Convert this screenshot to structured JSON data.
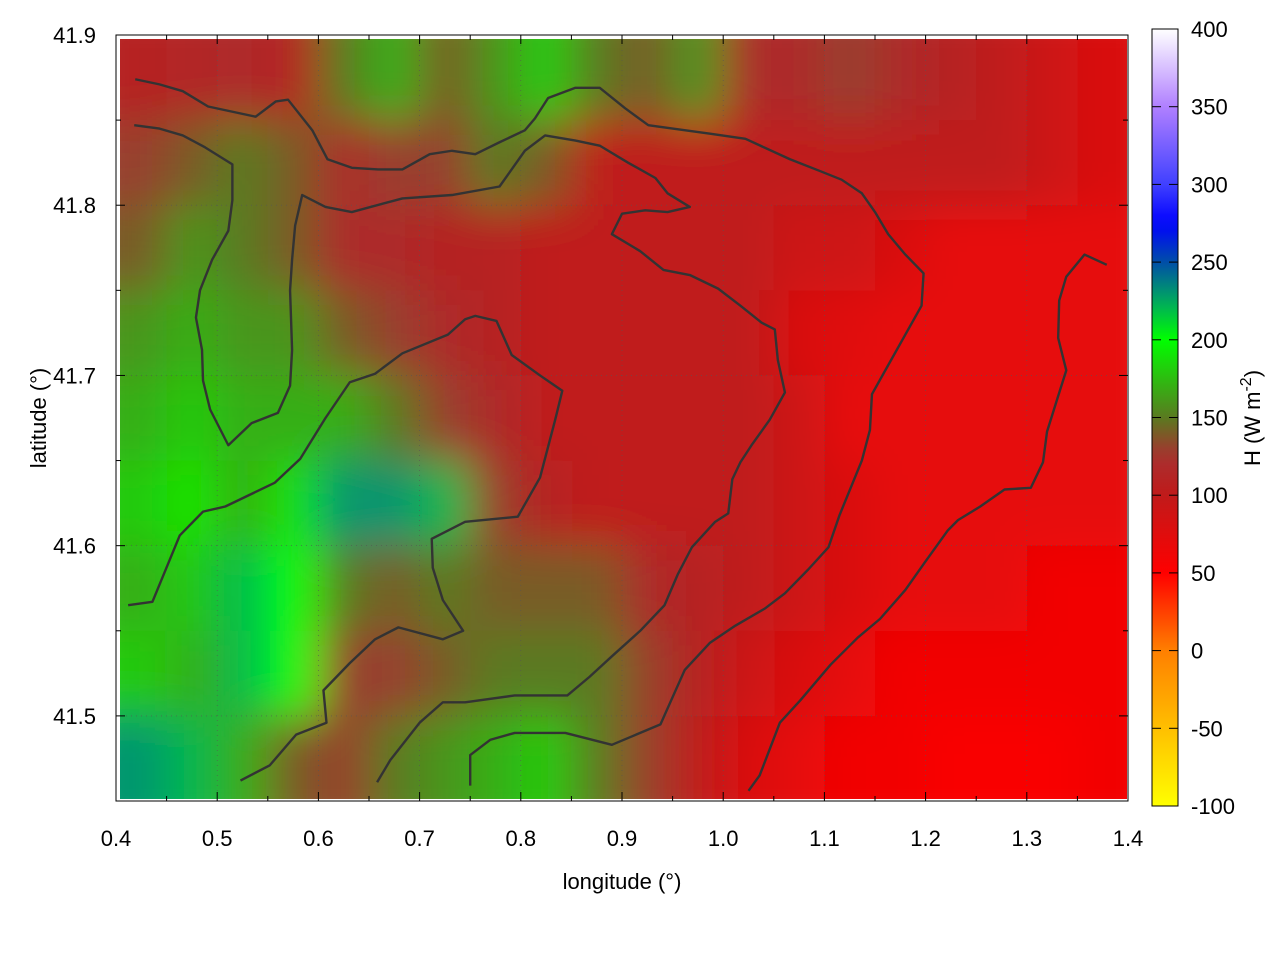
{
  "chart_data": {
    "type": "heatmap",
    "title": "",
    "xlabel": "longitude (°)",
    "ylabel": "latitude (°)",
    "colorbar_label": "H (W m",
    "colorbar_label_sup": "-2",
    "colorbar_label_close": ")",
    "xlim": [
      0.4,
      1.4
    ],
    "ylim": [
      41.45,
      41.9
    ],
    "clim": [
      -100,
      400
    ],
    "grid": true,
    "xticks": [
      "0.4",
      "0.5",
      "0.6",
      "0.7",
      "0.8",
      "0.9",
      "1.0",
      "1.1",
      "1.2",
      "1.3",
      "1.4"
    ],
    "yticks": [
      "41.5",
      "41.6",
      "41.7",
      "41.8",
      "41.9"
    ],
    "cticks": [
      "-100",
      "-50",
      "0",
      "50",
      "100",
      "150",
      "200",
      "250",
      "300",
      "350",
      "400"
    ],
    "colormap": [
      {
        "v": -100,
        "c": "#ffff00"
      },
      {
        "v": 0,
        "c": "#ff7f00"
      },
      {
        "v": 50,
        "c": "#ff0000"
      },
      {
        "v": 100,
        "c": "#c01a1a"
      },
      {
        "v": 125,
        "c": "#a83030"
      },
      {
        "v": 150,
        "c": "#5a7a20"
      },
      {
        "v": 200,
        "c": "#00ff00"
      },
      {
        "v": 225,
        "c": "#00a860"
      },
      {
        "v": 250,
        "c": "#004ea8"
      },
      {
        "v": 275,
        "c": "#0000ff"
      },
      {
        "v": 300,
        "c": "#4040ff"
      },
      {
        "v": 350,
        "c": "#b080ff"
      },
      {
        "v": 400,
        "c": "#ffffff"
      }
    ],
    "grid_x": [
      0.425,
      0.475,
      0.525,
      0.575,
      0.625,
      0.675,
      0.725,
      0.775,
      0.825,
      0.875,
      0.925,
      0.975,
      1.025,
      1.075,
      1.125,
      1.175,
      1.225,
      1.275,
      1.325,
      1.375
    ],
    "grid_y": [
      41.875,
      41.825,
      41.775,
      41.725,
      41.675,
      41.625,
      41.575,
      41.525,
      41.475
    ],
    "values": [
      [
        110,
        115,
        120,
        110,
        150,
        170,
        140,
        160,
        180,
        150,
        140,
        160,
        120,
        120,
        130,
        120,
        110,
        100,
        90,
        80
      ],
      [
        130,
        140,
        150,
        140,
        120,
        130,
        130,
        150,
        140,
        100,
        100,
        100,
        100,
        100,
        100,
        100,
        100,
        100,
        90,
        80
      ],
      [
        140,
        160,
        150,
        140,
        120,
        120,
        110,
        110,
        100,
        100,
        100,
        100,
        100,
        90,
        90,
        80,
        70,
        70,
        70,
        70
      ],
      [
        160,
        170,
        160,
        160,
        140,
        130,
        120,
        110,
        100,
        100,
        100,
        100,
        100,
        80,
        75,
        70,
        70,
        70,
        70,
        70
      ],
      [
        170,
        180,
        170,
        170,
        170,
        150,
        130,
        120,
        100,
        100,
        100,
        100,
        100,
        90,
        70,
        70,
        70,
        70,
        70,
        70
      ],
      [
        180,
        190,
        170,
        190,
        230,
        230,
        220,
        130,
        110,
        100,
        100,
        100,
        100,
        90,
        80,
        70,
        70,
        70,
        70,
        70
      ],
      [
        170,
        180,
        220,
        200,
        150,
        140,
        150,
        140,
        140,
        140,
        120,
        110,
        100,
        90,
        80,
        70,
        70,
        70,
        60,
        60
      ],
      [
        180,
        170,
        220,
        200,
        130,
        130,
        140,
        150,
        150,
        150,
        130,
        110,
        90,
        80,
        70,
        60,
        60,
        60,
        60,
        60
      ],
      [
        230,
        220,
        170,
        140,
        130,
        150,
        160,
        170,
        180,
        150,
        130,
        100,
        80,
        70,
        60,
        60,
        55,
        55,
        55,
        60
      ]
    ],
    "contour_color": "#333333",
    "contours": [
      [
        [
          0.412,
          41.565
        ],
        [
          0.436,
          41.567
        ],
        [
          0.463,
          41.606
        ],
        [
          0.486,
          41.62
        ],
        [
          0.508,
          41.623
        ],
        [
          0.557,
          41.637
        ],
        [
          0.582,
          41.651
        ],
        [
          0.607,
          41.675
        ],
        [
          0.631,
          41.696
        ],
        [
          0.656,
          41.701
        ],
        [
          0.683,
          41.713
        ],
        [
          0.728,
          41.724
        ],
        [
          0.745,
          41.733
        ],
        [
          0.755,
          41.735
        ],
        [
          0.776,
          41.732
        ],
        [
          0.791,
          41.712
        ],
        [
          0.819,
          41.7
        ],
        [
          0.841,
          41.691
        ],
        [
          0.834,
          41.674
        ],
        [
          0.819,
          41.64
        ],
        [
          0.797,
          41.617
        ],
        [
          0.745,
          41.614
        ],
        [
          0.712,
          41.604
        ],
        [
          0.713,
          41.587
        ],
        [
          0.723,
          41.568
        ],
        [
          0.743,
          41.55
        ],
        [
          0.723,
          41.545
        ],
        [
          0.679,
          41.552
        ],
        [
          0.656,
          41.545
        ],
        [
          0.631,
          41.531
        ],
        [
          0.605,
          41.515
        ],
        [
          0.608,
          41.496
        ],
        [
          0.578,
          41.489
        ],
        [
          0.552,
          41.471
        ],
        [
          0.523,
          41.462
        ]
      ],
      [
        [
          1.025,
          41.456
        ],
        [
          1.036,
          41.465
        ],
        [
          1.056,
          41.496
        ],
        [
          1.076,
          41.509
        ],
        [
          1.106,
          41.53
        ],
        [
          1.133,
          41.546
        ],
        [
          1.155,
          41.557
        ],
        [
          1.18,
          41.574
        ],
        [
          1.199,
          41.59
        ],
        [
          1.222,
          41.609
        ],
        [
          1.232,
          41.615
        ],
        [
          1.254,
          41.623
        ],
        [
          1.278,
          41.633
        ],
        [
          1.304,
          41.634
        ],
        [
          1.316,
          41.649
        ],
        [
          1.32,
          41.667
        ],
        [
          1.33,
          41.686
        ],
        [
          1.339,
          41.703
        ],
        [
          1.331,
          41.722
        ],
        [
          1.332,
          41.744
        ],
        [
          1.339,
          41.758
        ],
        [
          1.357,
          41.771
        ],
        [
          1.379,
          41.765
        ]
      ],
      [
        [
          0.75,
          41.459
        ],
        [
          0.75,
          41.477
        ],
        [
          0.77,
          41.486
        ],
        [
          0.794,
          41.49
        ],
        [
          0.844,
          41.49
        ],
        [
          0.89,
          41.483
        ],
        [
          0.91,
          41.488
        ],
        [
          0.938,
          41.495
        ],
        [
          0.962,
          41.527
        ],
        [
          0.987,
          41.543
        ],
        [
          1.012,
          41.553
        ],
        [
          1.041,
          41.563
        ],
        [
          1.061,
          41.572
        ],
        [
          1.084,
          41.586
        ],
        [
          1.104,
          41.599
        ],
        [
          1.115,
          41.618
        ],
        [
          1.137,
          41.65
        ],
        [
          1.145,
          41.668
        ],
        [
          1.147,
          41.689
        ],
        [
          1.163,
          41.706
        ],
        [
          1.18,
          41.724
        ],
        [
          1.196,
          41.741
        ],
        [
          1.198,
          41.76
        ],
        [
          1.18,
          41.771
        ],
        [
          1.163,
          41.783
        ],
        [
          1.15,
          41.796
        ],
        [
          1.137,
          41.807
        ],
        [
          1.117,
          41.815
        ],
        [
          1.096,
          41.82
        ],
        [
          1.066,
          41.827
        ],
        [
          1.022,
          41.839
        ],
        [
          0.987,
          41.842
        ],
        [
          0.926,
          41.847
        ],
        [
          0.903,
          41.857
        ],
        [
          0.878,
          41.869
        ],
        [
          0.854,
          41.869
        ],
        [
          0.827,
          41.863
        ],
        [
          0.814,
          41.851
        ],
        [
          0.804,
          41.844
        ],
        [
          0.779,
          41.837
        ],
        [
          0.755,
          41.83
        ],
        [
          0.732,
          41.832
        ],
        [
          0.71,
          41.83
        ],
        [
          0.683,
          41.821
        ],
        [
          0.659,
          41.821
        ],
        [
          0.633,
          41.822
        ],
        [
          0.609,
          41.827
        ],
        [
          0.594,
          41.844
        ],
        [
          0.57,
          41.862
        ],
        [
          0.558,
          41.861
        ],
        [
          0.538,
          41.852
        ],
        [
          0.491,
          41.858
        ],
        [
          0.466,
          41.867
        ],
        [
          0.443,
          41.871
        ],
        [
          0.419,
          41.874
        ]
      ],
      [
        [
          0.418,
          41.847
        ],
        [
          0.443,
          41.845
        ],
        [
          0.466,
          41.841
        ],
        [
          0.488,
          41.834
        ],
        [
          0.515,
          41.824
        ],
        [
          0.515,
          41.803
        ],
        [
          0.511,
          41.785
        ],
        [
          0.495,
          41.768
        ],
        [
          0.483,
          41.75
        ],
        [
          0.479,
          41.734
        ],
        [
          0.485,
          41.715
        ],
        [
          0.486,
          41.697
        ],
        [
          0.493,
          41.68
        ],
        [
          0.511,
          41.659
        ],
        [
          0.534,
          41.672
        ],
        [
          0.56,
          41.678
        ],
        [
          0.572,
          41.694
        ],
        [
          0.574,
          41.715
        ],
        [
          0.572,
          41.75
        ],
        [
          0.574,
          41.768
        ],
        [
          0.577,
          41.788
        ],
        [
          0.584,
          41.806
        ],
        [
          0.607,
          41.799
        ],
        [
          0.633,
          41.796
        ],
        [
          0.683,
          41.804
        ],
        [
          0.732,
          41.806
        ],
        [
          0.779,
          41.811
        ],
        [
          0.804,
          41.832
        ],
        [
          0.824,
          41.841
        ],
        [
          0.854,
          41.838
        ],
        [
          0.878,
          41.835
        ],
        [
          0.906,
          41.825
        ],
        [
          0.933,
          41.816
        ],
        [
          0.945,
          41.807
        ],
        [
          0.967,
          41.799
        ],
        [
          0.945,
          41.796
        ],
        [
          0.923,
          41.797
        ],
        [
          0.9,
          41.795
        ],
        [
          0.89,
          41.783
        ],
        [
          0.918,
          41.773
        ],
        [
          0.941,
          41.762
        ],
        [
          0.967,
          41.759
        ],
        [
          0.995,
          41.751
        ],
        [
          1.017,
          41.741
        ],
        [
          1.038,
          41.731
        ],
        [
          1.051,
          41.727
        ],
        [
          1.054,
          41.709
        ],
        [
          1.061,
          41.69
        ],
        [
          1.046,
          41.674
        ],
        [
          1.028,
          41.659
        ],
        [
          1.017,
          41.649
        ],
        [
          1.009,
          41.639
        ],
        [
          1.005,
          41.619
        ],
        [
          0.992,
          41.614
        ],
        [
          0.969,
          41.599
        ],
        [
          0.955,
          41.583
        ],
        [
          0.942,
          41.565
        ],
        [
          0.918,
          41.55
        ],
        [
          0.89,
          41.535
        ],
        [
          0.868,
          41.523
        ],
        [
          0.846,
          41.512
        ],
        [
          0.794,
          41.512
        ],
        [
          0.745,
          41.508
        ],
        [
          0.723,
          41.508
        ],
        [
          0.7,
          41.496
        ],
        [
          0.671,
          41.474
        ],
        [
          0.658,
          41.461
        ]
      ]
    ]
  }
}
